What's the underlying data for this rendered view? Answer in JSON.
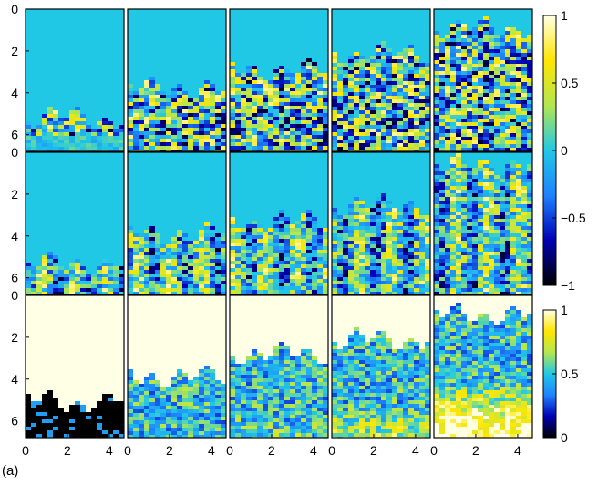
{
  "figure_label": "(a)",
  "chart_data": {
    "type": "heatmap",
    "layout": {
      "rows": 3,
      "cols": 5
    },
    "x_axis": {
      "range": [
        0,
        4.7
      ],
      "ticks": [
        0,
        2,
        4
      ],
      "tick_labels": [
        "0",
        "2",
        "4"
      ]
    },
    "y_axis": {
      "range": [
        0,
        6.8
      ],
      "inverted": true,
      "ticks": [
        0,
        2,
        4,
        6
      ],
      "tick_labels": [
        "0",
        "2",
        "4",
        "6"
      ]
    },
    "colorbars": [
      {
        "rows": [
          0,
          1
        ],
        "range": [
          -1,
          1
        ],
        "ticks": [
          1,
          0.5,
          0,
          -0.5,
          -1
        ],
        "tick_labels": [
          "1",
          "0.5",
          "0",
          "−0.5",
          "−1"
        ],
        "colormap": [
          "#000000",
          "#0000b4",
          "#1e82ff",
          "#20c8e6",
          "#b4e650",
          "#ffe600",
          "#ffffe6"
        ],
        "background_value": 0.0
      },
      {
        "rows": [
          2
        ],
        "range": [
          0,
          1
        ],
        "ticks": [
          1,
          0.5,
          0
        ],
        "tick_labels": [
          "1",
          "0.5",
          "0"
        ],
        "colormap": [
          "#000000",
          "#0000b4",
          "#1e82ff",
          "#20c8e6",
          "#b4e650",
          "#ffe600",
          "#ffffe6"
        ],
        "background_value": 1.0
      }
    ],
    "front_depth": [
      [
        5.1,
        3.7,
        2.8,
        2.0,
        0.8
      ],
      [
        5.2,
        3.8,
        3.2,
        2.4,
        0.5
      ],
      [
        5.0,
        3.8,
        2.7,
        2.0,
        0.8
      ]
    ]
  }
}
